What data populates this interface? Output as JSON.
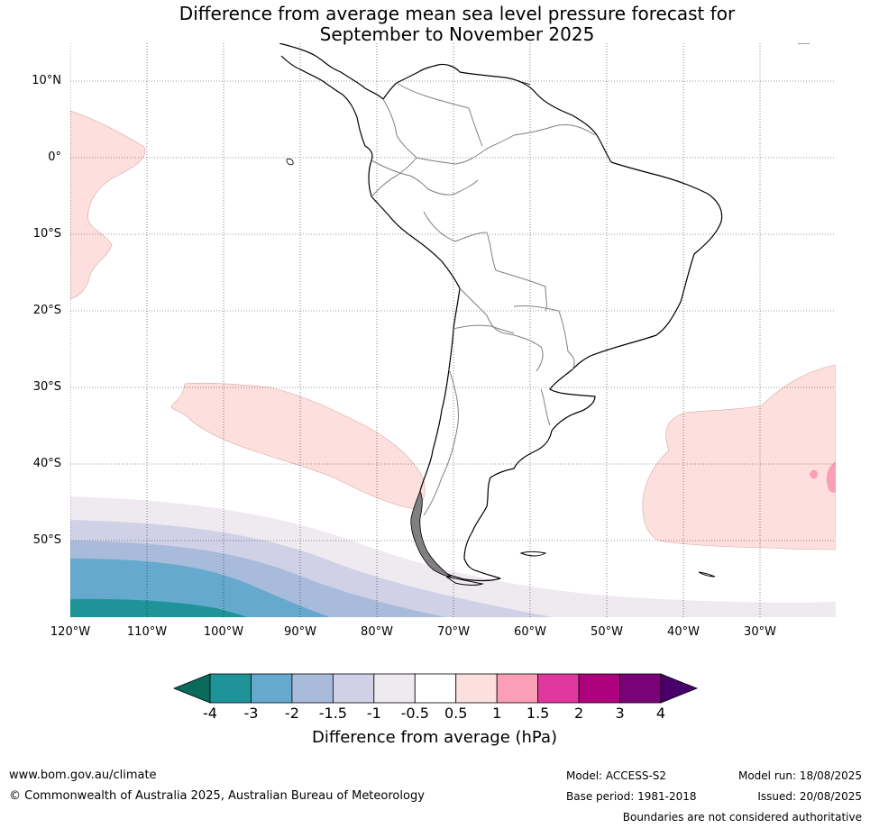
{
  "title_line1": "Difference from average mean sea level pressure forecast for",
  "title_line2": "September to November 2025",
  "lat_labels": [
    "10°N",
    "0°",
    "10°S",
    "20°S",
    "30°S",
    "40°S",
    "50°S"
  ],
  "lon_labels": [
    "120°W",
    "110°W",
    "100°W",
    "90°W",
    "80°W",
    "70°W",
    "60°W",
    "50°W",
    "40°W",
    "30°W"
  ],
  "colorbar": {
    "ticks": [
      "-4",
      "-3",
      "-2",
      "-1.5",
      "-1",
      "-0.5",
      "0.5",
      "1",
      "1.5",
      "2",
      "3",
      "4"
    ],
    "colors": [
      "#0a6b5c",
      "#1e9499",
      "#66a9cf",
      "#a8bbdb",
      "#d0d1e6",
      "#efeaf0",
      "#ffffff",
      "#fde0dd",
      "#fa9fb5",
      "#e0379f",
      "#ad017e",
      "#7a0177",
      "#49006a"
    ],
    "label": "Difference from average (hPa)"
  },
  "footer": {
    "website": "www.bom.gov.au/climate",
    "copyright": "© Commonwealth of Australia 2025, Australian Bureau of Meteorology",
    "model": "Model: ACCESS-S2",
    "base_period": "Base period: 1981-2018",
    "model_run": "Model run: 18/08/2025",
    "issued": "Issued: 20/08/2025",
    "disclaimer": "Boundaries are not considered authoritative"
  },
  "map_data": {
    "lon_range": [
      -120,
      -20
    ],
    "lat_range": [
      -60,
      15
    ],
    "coastline_color": "#000000",
    "border_color": "#808080"
  }
}
